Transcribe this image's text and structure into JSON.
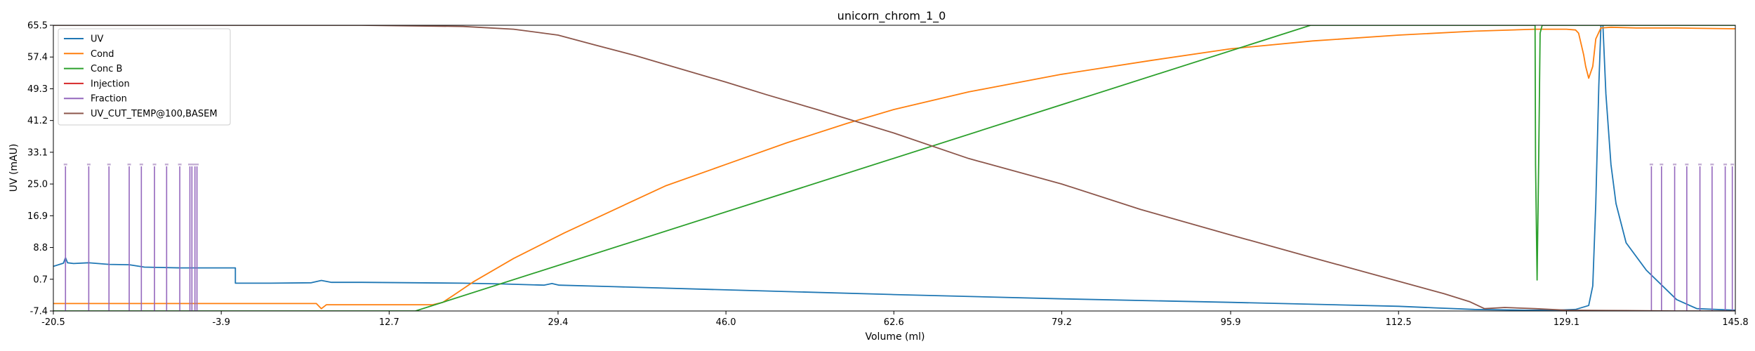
{
  "chart_data": {
    "type": "line",
    "title": "unicorn_chrom_1_0",
    "xlabel": "Volume (ml)",
    "ylabel": "UV (mAU)",
    "xlim": [
      -20.5,
      145.8
    ],
    "ylim": [
      -7.4,
      65.5
    ],
    "xticks": [
      "-20.5",
      "-3.9",
      "12.7",
      "29.4",
      "46.0",
      "62.6",
      "79.2",
      "95.9",
      "112.5",
      "129.1",
      "145.8"
    ],
    "yticks": [
      "-7.4",
      "0.7",
      "8.8",
      "16.9",
      "25.0",
      "33.1",
      "41.2",
      "49.3",
      "57.4",
      "65.5"
    ],
    "grid": false,
    "legend_position": "upper-left",
    "series": [
      {
        "name": "UV",
        "color": "#1f77b4",
        "x": [
          -20.5,
          -19.5,
          -19.3,
          -19.1,
          -18.5,
          -17.0,
          -15.0,
          -13.0,
          -11.5,
          -10.0,
          -8.0,
          -5.0,
          -2.5,
          -2.5,
          1.0,
          5.0,
          6.0,
          7.0,
          10.0,
          20.0,
          24.0,
          28.0,
          28.8,
          29.5,
          35.0,
          46.0,
          62.6,
          79.2,
          95.9,
          112.5,
          116.0,
          120.0,
          125.0,
          128.0,
          130.0,
          131.3,
          131.7,
          132.0,
          132.3,
          132.6,
          133.0,
          133.5,
          134.0,
          135.0,
          137.0,
          140.0,
          142.0,
          145.8
        ],
        "values": [
          4.0,
          4.8,
          6.2,
          4.9,
          4.7,
          4.9,
          4.5,
          4.4,
          3.8,
          3.7,
          3.6,
          3.6,
          3.6,
          -0.3,
          -0.3,
          -0.2,
          0.4,
          -0.1,
          -0.1,
          -0.3,
          -0.5,
          -0.8,
          -0.4,
          -0.8,
          -1.2,
          -2.0,
          -3.2,
          -4.3,
          -5.2,
          -6.2,
          -6.6,
          -7.0,
          -7.2,
          -7.2,
          -7.0,
          -6.0,
          -1.0,
          20.0,
          50.0,
          72.0,
          48.0,
          30.0,
          20.0,
          10.0,
          3.0,
          -4.5,
          -6.8,
          -7.2
        ]
      },
      {
        "name": "Cond",
        "color": "#ff7f0e",
        "x": [
          -20.5,
          5.5,
          6.0,
          6.5,
          10.0,
          17.0,
          18.0,
          19.0,
          21.0,
          25.0,
          30.0,
          35.0,
          40.0,
          46.0,
          52.0,
          58.0,
          62.6,
          70.0,
          79.2,
          88.0,
          95.9,
          104.0,
          112.5,
          120.0,
          126.0,
          129.1,
          130.0,
          130.3,
          130.8,
          131.0,
          131.3,
          131.7,
          132.0,
          132.5,
          133.5,
          136.0,
          140.0,
          145.8
        ],
        "values": [
          -5.5,
          -5.5,
          -6.8,
          -5.8,
          -5.8,
          -5.8,
          -5.2,
          -3.5,
          0.0,
          6.0,
          12.5,
          18.5,
          24.5,
          30.0,
          35.5,
          40.5,
          44.0,
          48.5,
          53.0,
          56.5,
          59.5,
          61.5,
          63.0,
          64.0,
          64.5,
          64.5,
          64.3,
          63.5,
          58.0,
          55.0,
          52.0,
          55.0,
          62.0,
          64.8,
          65.0,
          64.8,
          64.8,
          64.6
        ]
      },
      {
        "name": "Conc B",
        "color": "#2ca02c",
        "x": [
          -20.5,
          15.3,
          103.8,
          126.0,
          126.05,
          126.2,
          126.35,
          126.5,
          126.7,
          145.8
        ],
        "values": [
          -7.4,
          -7.4,
          65.5,
          65.5,
          30.0,
          0.5,
          30.0,
          63.5,
          65.5,
          65.5
        ]
      },
      {
        "name": "Injection",
        "color": "#d62728",
        "x": [],
        "values": []
      },
      {
        "name": "Fraction",
        "color": "#9467bd",
        "x": [
          -19.3,
          -17.0,
          -15.0,
          -13.0,
          -11.8,
          -10.5,
          -9.3,
          -8.0,
          -7.0,
          -6.8,
          -6.5,
          -6.3,
          137.5,
          138.5,
          139.8,
          141.0,
          142.3,
          143.5,
          144.8,
          145.5
        ],
        "values": [
          29.5,
          29.5,
          29.5,
          29.5,
          29.5,
          29.5,
          29.5,
          29.5,
          29.5,
          29.5,
          29.5,
          29.5,
          29.5,
          29.5,
          29.5,
          29.5,
          29.5,
          29.5,
          29.5,
          29.5
        ]
      },
      {
        "name": "UV_CUT_TEMP@100,BASEM",
        "color": "#8c564b",
        "x": [
          -20.5,
          10.0,
          20.0,
          25.0,
          29.4,
          33.0,
          37.0,
          40.0,
          46.0,
          50.0,
          55.0,
          62.6,
          70.0,
          79.2,
          87.0,
          95.9,
          104.0,
          112.5,
          117.0,
          119.5,
          121.0,
          123.0,
          126.0,
          129.1,
          135.0,
          140.0,
          145.8
        ],
        "values": [
          65.5,
          65.5,
          65.2,
          64.5,
          63.0,
          60.5,
          57.8,
          55.5,
          51.0,
          47.8,
          44.0,
          38.0,
          31.5,
          25.0,
          18.5,
          12.0,
          6.2,
          0.2,
          -3.0,
          -5.0,
          -6.8,
          -6.5,
          -6.8,
          -7.2,
          -7.3,
          -7.4,
          -7.4
        ]
      }
    ]
  }
}
